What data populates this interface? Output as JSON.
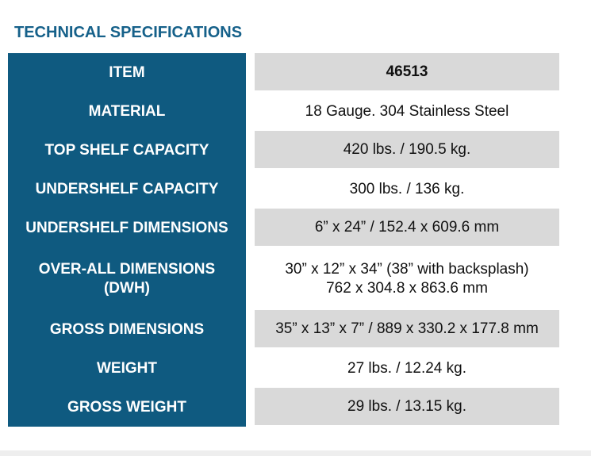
{
  "header": {
    "title": "TECHNICAL SPECIFICATIONS"
  },
  "table": {
    "rows": [
      {
        "label": [
          "ITEM"
        ],
        "value": [
          "46513"
        ]
      },
      {
        "label": [
          "MATERIAL"
        ],
        "value": [
          "18 Gauge. 304 Stainless Steel"
        ]
      },
      {
        "label": [
          "TOP SHELF CAPACITY"
        ],
        "value": [
          "420 lbs. / 190.5 kg."
        ]
      },
      {
        "label": [
          "UNDERSHELF CAPACITY"
        ],
        "value": [
          "300 lbs. / 136 kg."
        ]
      },
      {
        "label": [
          "UNDERSHELF DIMENSIONS"
        ],
        "value": [
          "6” x 24” / 152.4 x 609.6 mm"
        ]
      },
      {
        "label": [
          "OVER-ALL DIMENSIONS",
          "(DWH)"
        ],
        "value": [
          "30” x 12” x 34” (38” with backsplash)",
          "762 x 304.8 x 863.6 mm"
        ]
      },
      {
        "label": [
          "GROSS DIMENSIONS"
        ],
        "value": [
          "35” x 13” x 7” / 889 x 330.2 x 177.8 mm"
        ]
      },
      {
        "label": [
          "WEIGHT"
        ],
        "value": [
          "27 lbs. / 12.24 kg."
        ]
      },
      {
        "label": [
          "GROSS WEIGHT"
        ],
        "value": [
          "29 lbs. / 13.15 kg."
        ]
      }
    ]
  }
}
